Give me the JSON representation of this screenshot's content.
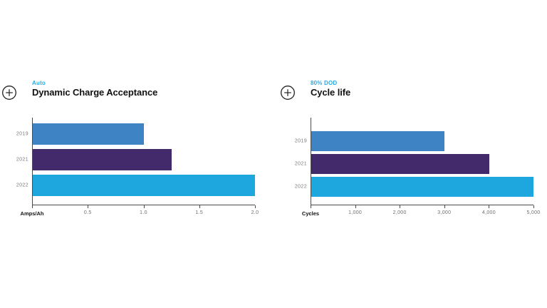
{
  "page": {
    "background": "#ffffff"
  },
  "colors": {
    "accent_cyan": "#2aabe2",
    "bar_2019": "#3e84c4",
    "bar_2021": "#422a6b",
    "bar_2022": "#1ea6de",
    "axis_line": "#4a4a4a",
    "label_gray": "#7a7a7a",
    "title_black": "#111111"
  },
  "icons": {
    "expand": "plus-circle-icon"
  },
  "chart_data": [
    {
      "type": "bar",
      "orientation": "horizontal",
      "eyebrow": "Auto",
      "title": "Dynamic Charge Acceptance",
      "categories": [
        "2019",
        "2021",
        "2022"
      ],
      "values": [
        1.0,
        1.25,
        2.0
      ],
      "bar_colors": [
        "#3e84c4",
        "#422a6b",
        "#1ea6de"
      ],
      "xlabel": "Amps/Ah",
      "xlim": [
        0,
        2.0
      ],
      "xticks": [
        {
          "value": 0.5,
          "label": "0.5"
        },
        {
          "value": 1.0,
          "label": "1.0"
        },
        {
          "value": 1.5,
          "label": "1.5"
        },
        {
          "value": 2.0,
          "label": "2.0"
        }
      ],
      "grid": false,
      "legend": false
    },
    {
      "type": "bar",
      "orientation": "horizontal",
      "eyebrow": "80% DOD",
      "title": "Cycle life",
      "categories": [
        "2019",
        "2021",
        "2022"
      ],
      "values": [
        3000,
        4000,
        5000
      ],
      "bar_colors": [
        "#3e84c4",
        "#422a6b",
        "#1ea6de"
      ],
      "xlabel": "Cycles",
      "xlim": [
        0,
        5000
      ],
      "xticks": [
        {
          "value": 1000,
          "label": "1,000"
        },
        {
          "value": 2000,
          "label": "2,000"
        },
        {
          "value": 3000,
          "label": "3,000"
        },
        {
          "value": 4000,
          "label": "4,000"
        },
        {
          "value": 5000,
          "label": "5,000"
        }
      ],
      "grid": false,
      "legend": false
    }
  ]
}
